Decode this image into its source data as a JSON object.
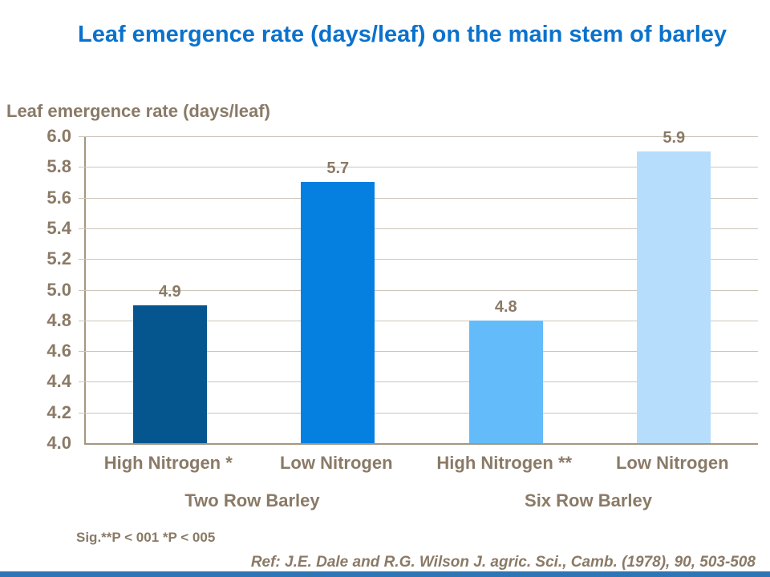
{
  "page": {
    "title": "Leaf emergence rate (days/leaf) on the main stem of barley"
  },
  "chart_data": {
    "type": "bar",
    "title": "Leaf emergence rate (days/leaf)",
    "ylabel": "Leaf emergence rate (days/leaf)",
    "xlabel": "",
    "ylim": [
      4.0,
      6.0
    ],
    "ytick_step": 0.2,
    "grid": true,
    "legend": false,
    "categories": [
      "High Nitrogen *",
      "Low Nitrogen",
      "High Nitrogen **",
      "Low Nitrogen"
    ],
    "values": [
      4.9,
      5.7,
      4.8,
      5.9
    ],
    "bar_colors": [
      "#05568f",
      "#0680e0",
      "#64bbfa",
      "#b7ddfc"
    ],
    "group_labels": [
      {
        "label": "Two Row Barley",
        "bars": [
          0,
          1
        ]
      },
      {
        "label": "Six Row Barley",
        "bars": [
          2,
          3
        ]
      }
    ]
  },
  "notes": {
    "sig": "Sig.**P < 001 *P < 005",
    "ref": "Ref: J.E. Dale and R.G. Wilson J. agric. Sci., Camb. (1978), 90, 503-508"
  },
  "colors": {
    "title_text": "#0a72cc",
    "body_text": "#8a7a66",
    "gridline": "#cdc5ba",
    "axis_line": "#a5967f",
    "bottom_bar": "#2e75b6"
  }
}
